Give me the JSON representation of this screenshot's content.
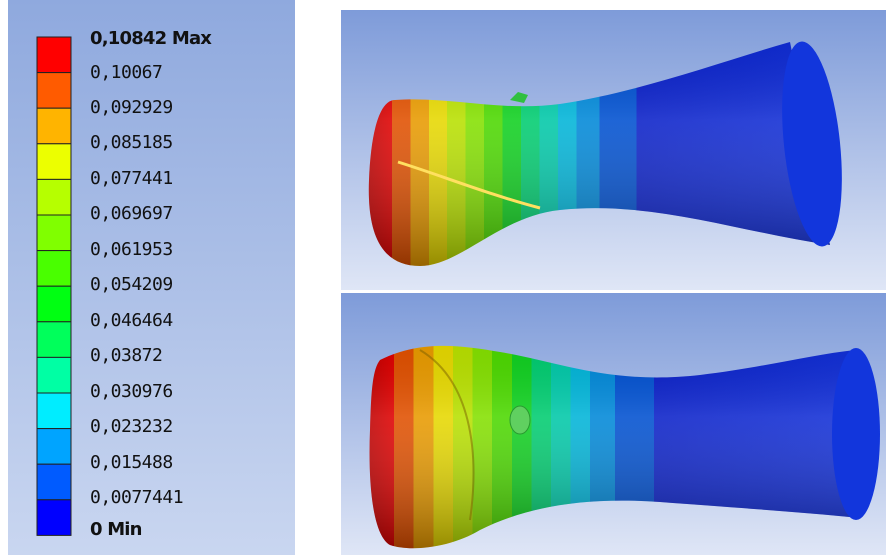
{
  "legend": {
    "labels": [
      "0,10842 Max",
      "0,10067",
      "0,092929",
      "0,085185",
      "0,077441",
      "0,069697",
      "0,061953",
      "0,054209",
      "0,046464",
      "0,03872",
      "0,030976",
      "0,023232",
      "0,015488",
      "0,0077441",
      "0 Min"
    ]
  }
}
